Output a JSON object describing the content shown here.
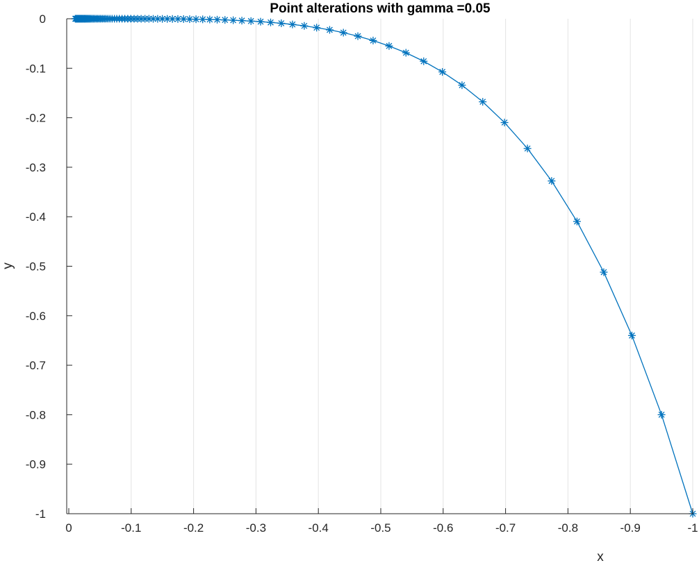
{
  "chart_data": {
    "type": "line",
    "title": "Point alterations with gamma =0.05",
    "xlabel": "x",
    "ylabel": "y",
    "xlim": [
      0,
      -1
    ],
    "ylim": [
      -1,
      0
    ],
    "x_reversed": true,
    "grid": {
      "x": true,
      "y": false
    },
    "xticks": [
      0,
      -0.1,
      -0.2,
      -0.3,
      -0.4,
      -0.5,
      -0.6,
      -0.7,
      -0.8,
      -0.9,
      -1
    ],
    "xtick_labels": [
      "0",
      "-0.1",
      "-0.2",
      "-0.3",
      "-0.4",
      "-0.5",
      "-0.6",
      "-0.7",
      "-0.8",
      "-0.9",
      "-1"
    ],
    "yticks": [
      0,
      -0.1,
      -0.2,
      -0.3,
      -0.4,
      -0.5,
      -0.6,
      -0.7,
      -0.8,
      -0.9,
      -1
    ],
    "ytick_labels": [
      "0",
      "-0.1",
      "-0.2",
      "-0.3",
      "-0.4",
      "-0.5",
      "-0.6",
      "-0.7",
      "-0.8",
      "-0.9",
      "-1"
    ],
    "marker": "asterisk",
    "color": "#0072bd",
    "series": [
      {
        "x": [
          -1.0,
          -0.95,
          -0.9025,
          -0.8574,
          -0.8145,
          -0.7738,
          -0.7351,
          -0.6983,
          -0.6634,
          -0.6302,
          -0.5987,
          -0.5688,
          -0.5404,
          -0.5133,
          -0.4877,
          -0.4633,
          -0.4401,
          -0.4181,
          -0.3972,
          -0.3774,
          -0.3585,
          -0.3406,
          -0.3235,
          -0.3074,
          -0.292,
          -0.2774,
          -0.2635,
          -0.2503,
          -0.2378,
          -0.2259,
          -0.2146,
          -0.2039,
          -0.1937,
          -0.184,
          -0.1748,
          -0.1661,
          -0.1578,
          -0.1499,
          -0.1424,
          -0.1353,
          -0.1285,
          -0.1221,
          -0.116,
          -0.1102,
          -0.1047,
          -0.0994,
          -0.0945,
          -0.0897,
          -0.0853,
          -0.081,
          -0.0769,
          -0.0731,
          -0.0694,
          -0.066,
          -0.0627,
          -0.0595,
          -0.0566,
          -0.0537,
          -0.051,
          -0.0485,
          -0.0461,
          -0.0438,
          -0.0416,
          -0.0395,
          -0.0375,
          -0.0356,
          -0.0339,
          -0.0322,
          -0.0306,
          -0.029,
          -0.0276,
          -0.0262,
          -0.0249,
          -0.0236,
          -0.0225,
          -0.0213,
          -0.0203,
          -0.0193,
          -0.0183,
          -0.0174,
          -0.0165,
          -0.0157,
          -0.0149,
          -0.0142,
          -0.0135,
          -0.0128,
          -0.0121,
          -0.0115,
          -0.011,
          -0.0104
        ],
        "y": [
          -1.0,
          -0.8,
          -0.64,
          -0.512,
          -0.4096,
          -0.3277,
          -0.2621,
          -0.2097,
          -0.1678,
          -0.1342,
          -0.1074,
          -0.0859,
          -0.0687,
          -0.055,
          -0.044,
          -0.0352,
          -0.0281,
          -0.0225,
          -0.018,
          -0.0144,
          -0.0115,
          -0.0092,
          -0.0074,
          -0.0059,
          -0.0047,
          -0.0038,
          -0.003,
          -0.0024,
          -0.0019,
          -0.0015,
          -0.0012,
          -0.001,
          -0.0008,
          -0.0006,
          -0.0005,
          -0.0004,
          -0.0003,
          -0.0003,
          -0.0002,
          -0.0002,
          -0.0001,
          -0.0001,
          -0.0001,
          -0.0001,
          -0.0001,
          0,
          0,
          0,
          0,
          0,
          0,
          0,
          0,
          0,
          0,
          0,
          0,
          0,
          0,
          0,
          0,
          0,
          0,
          0,
          0,
          0,
          0,
          0,
          0,
          0,
          0,
          0,
          0,
          0,
          0,
          0,
          0,
          0,
          0,
          0,
          0,
          0,
          0,
          0,
          0,
          0,
          0,
          0,
          0,
          0
        ]
      }
    ]
  }
}
